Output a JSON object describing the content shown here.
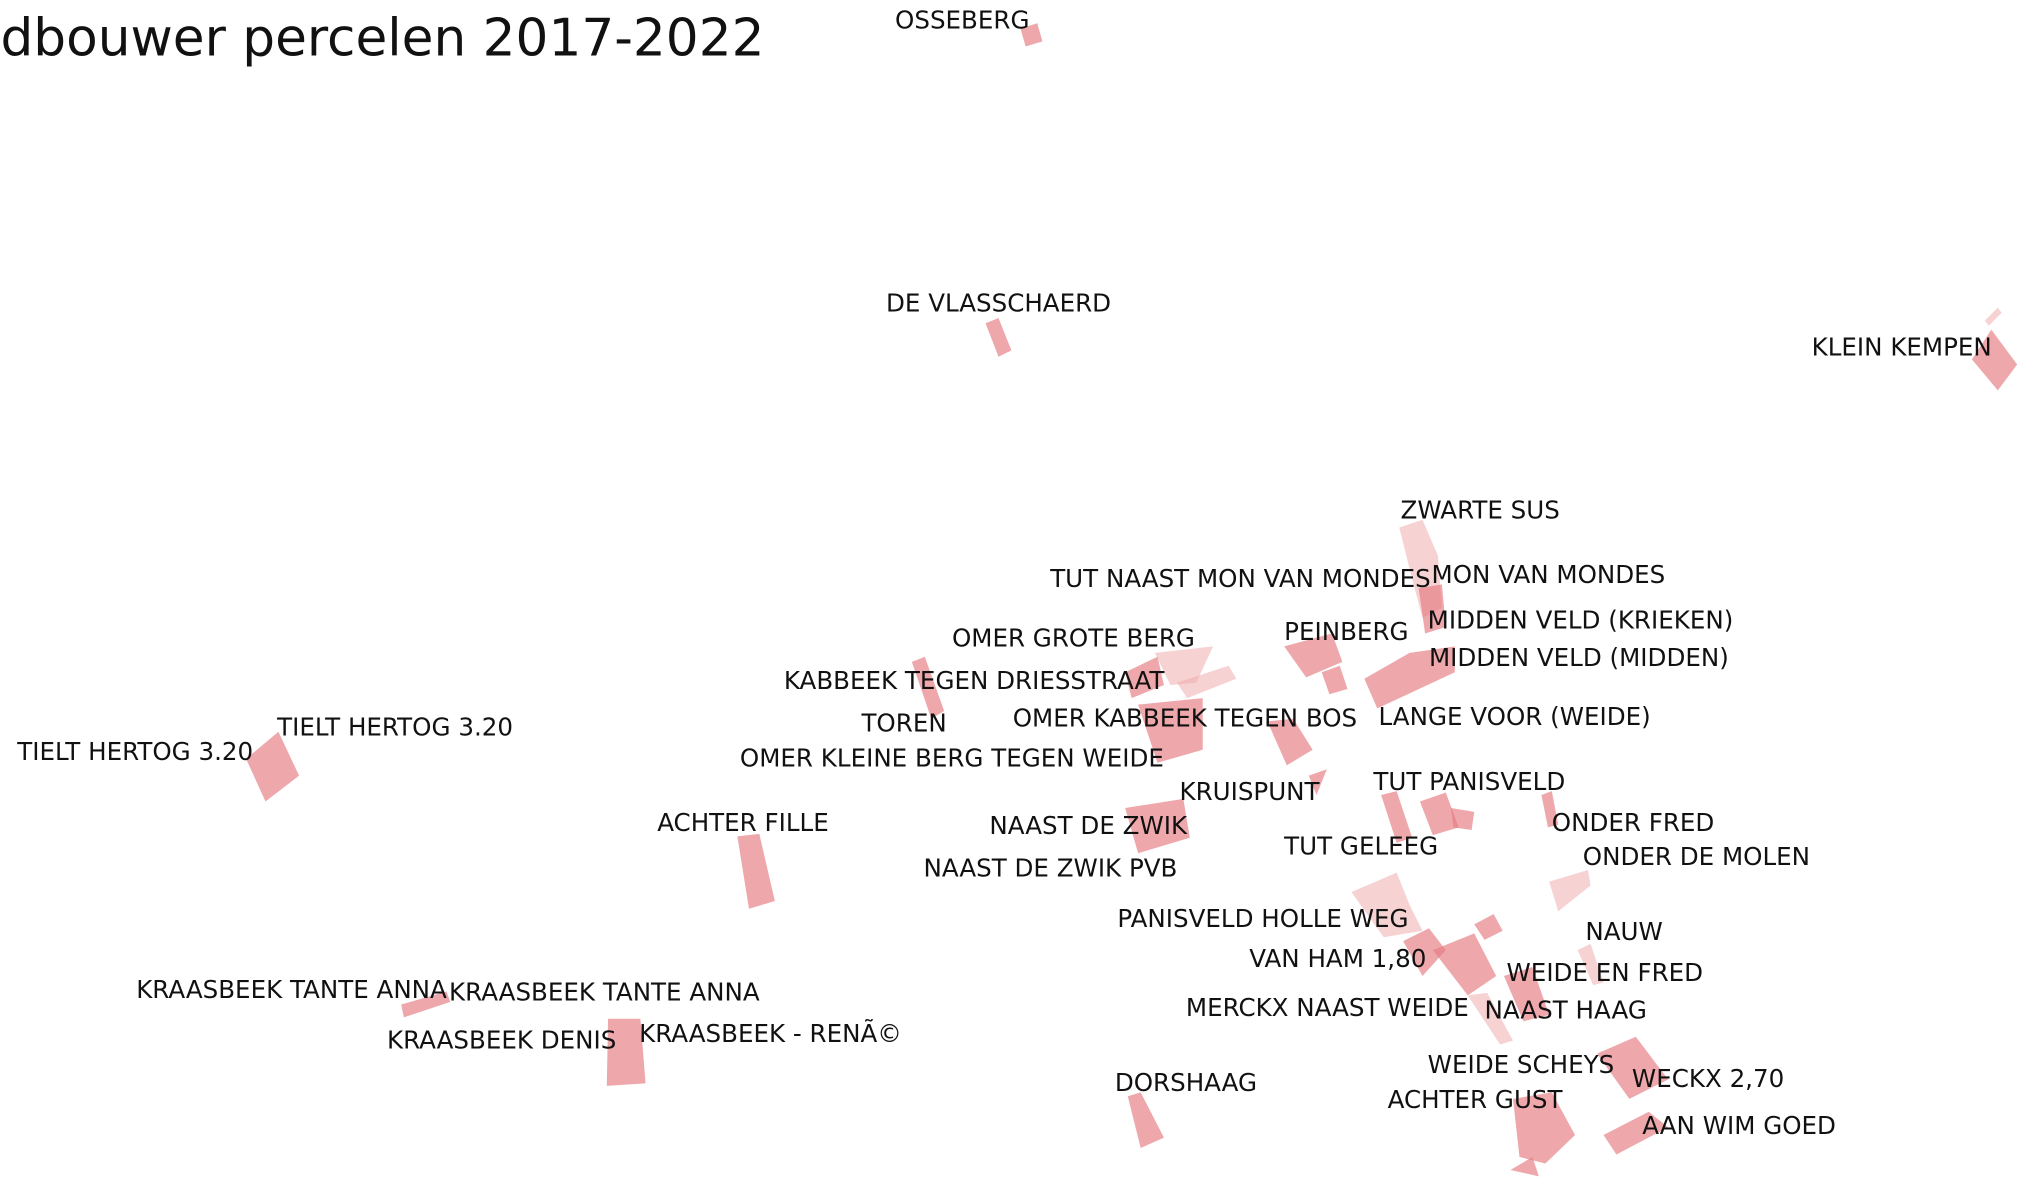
{
  "title": "dbouwer percelen 2017-2022",
  "labels": [
    "OSSEBERG",
    "DE VLASSCHAERD",
    "KLEIN KEMPEN",
    "ZWARTE SUS",
    "TUT NAAST MON VAN MONDES",
    "MON VAN MONDES",
    "MIDDEN VELD (KRIEKEN)",
    "OMER GROTE BERG",
    "PEINBERG",
    "MIDDEN VELD (MIDDEN)",
    "KABBEEK TEGEN DRIESSTRAAT",
    "TOREN",
    "OMER KABBEEK TEGEN BOS",
    "LANGE VOOR (WEIDE)",
    "TIELT HERTOG 3.20",
    "TIELT HERTOG 3.20",
    "OMER KLEINE BERG TEGEN WEIDE",
    "TUT PANISVELD",
    "KRUISPUNT",
    "ACHTER FILLE",
    "NAAST DE ZWIK",
    "ONDER FRED",
    "TUT GELEEG",
    "ONDER DE MOLEN",
    "NAAST DE ZWIK PVB",
    "PANISVELD HOLLE WEG",
    "NAUW",
    "VAN HAM 1,80",
    "WEIDE EN FRED",
    "KRAASBEEK TANTE ANNA",
    "KRAASBEEK TANTE ANNA",
    "MERCKX NAAST WEIDE",
    "NAAST HAAG",
    "KRAASBEEK - RENÃ©",
    "KRAASBEEK DENIS",
    "WEIDE SCHEYS",
    "WECKX 2,70",
    "DORSHAAG",
    "ACHTER GUST",
    "AAN WIM GOED"
  ]
}
